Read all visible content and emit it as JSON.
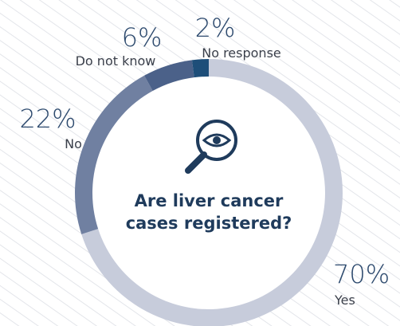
{
  "chart_data": {
    "type": "donut",
    "title": "Are liver cancer cases registered?",
    "categories": [
      "Yes",
      "No",
      "Do not know",
      "No response"
    ],
    "values": [
      70,
      22,
      6,
      2
    ],
    "value_labels": [
      "70%",
      "22%",
      "6%",
      "2%"
    ],
    "colors": [
      "#c7ccdb",
      "#7080a1",
      "#4b6189",
      "#1e4e79"
    ]
  }
}
